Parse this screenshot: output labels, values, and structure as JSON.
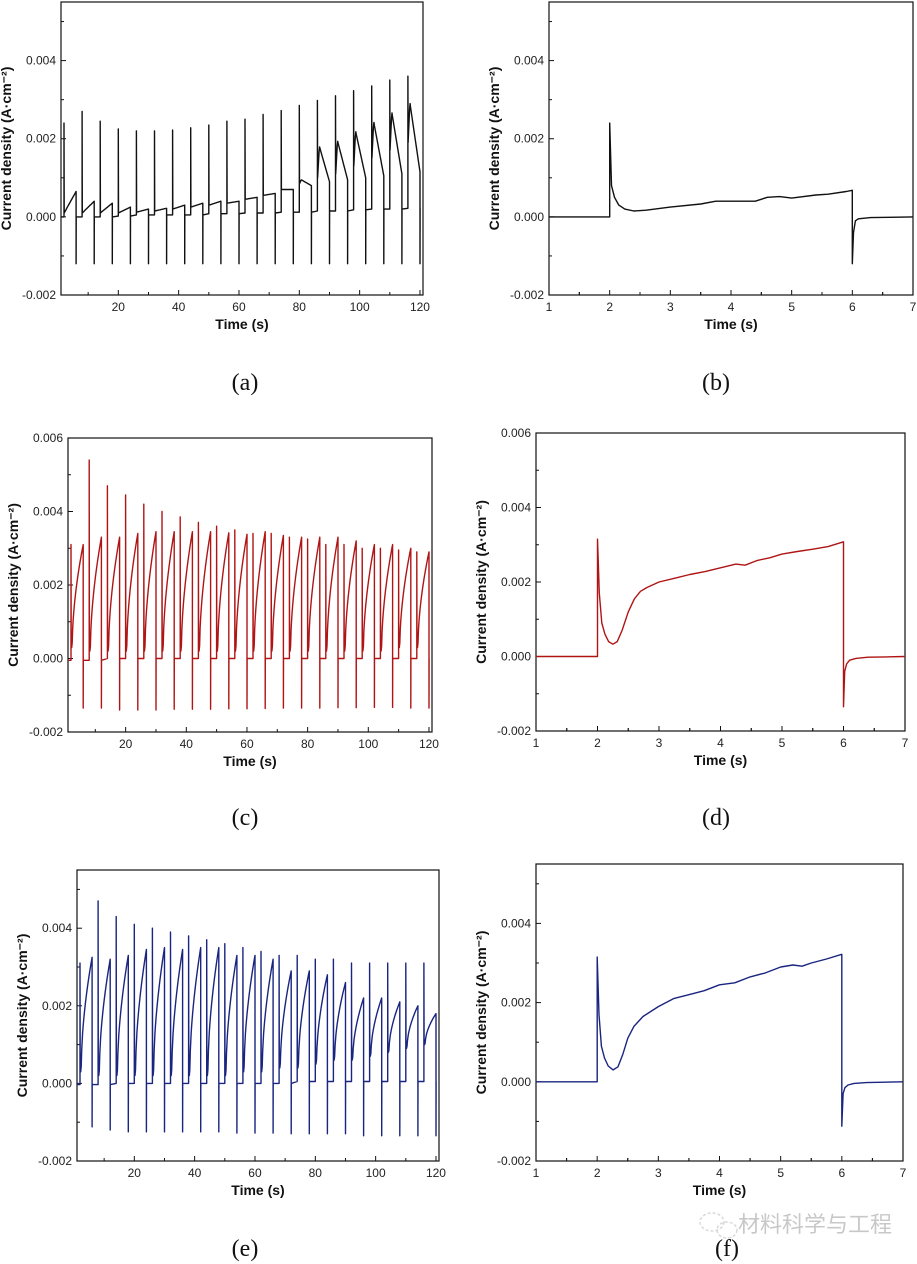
{
  "figure": {
    "watermark": "材料科学与工程",
    "watermark_icon": "wechat-logo-icon"
  },
  "chart_data": [
    {
      "id": "a",
      "panel_label": "(a)",
      "type": "line",
      "color": "#111111",
      "xlabel": "Time (s)",
      "ylabel": "Current density (A·cm⁻²)",
      "xlim": [
        1,
        121
      ],
      "ylim": [
        -0.002,
        0.0055
      ],
      "xticks": [
        20,
        40,
        60,
        80,
        100,
        120
      ],
      "yticks": [
        -0.002,
        0.0,
        0.002,
        0.004
      ],
      "ytick_labels": [
        "-0.002",
        "0.000",
        "0.002",
        "0.004"
      ],
      "pulse_mode": "cycles",
      "period_s": 6,
      "on_start_s": 2,
      "on_duration_s": 4,
      "anodic_spike_peaks": [
        0.0024,
        0.0027,
        0.00245,
        0.00225,
        0.0022,
        0.0022,
        0.00222,
        0.00228,
        0.00235,
        0.00245,
        0.0025,
        0.00262,
        0.00272,
        0.00285,
        0.00298,
        0.0031,
        0.00323,
        0.00335,
        0.0035,
        0.0036
      ],
      "pulse_start_values": [
        0.0001,
        0.0001,
        0.0001,
        0.0001,
        0.00012,
        0.00015,
        0.0002,
        0.00025,
        0.0003,
        0.00035,
        0.00045,
        0.00055,
        0.0007,
        0.00085,
        0.001,
        0.0011,
        0.0013,
        0.0015,
        0.0017,
        0.0019
      ],
      "pulse_end_values": [
        0.00065,
        0.0004,
        0.00035,
        0.00025,
        0.0002,
        0.00022,
        0.0003,
        0.00035,
        0.0004,
        0.0004,
        0.0005,
        0.0006,
        0.0007,
        0.0008,
        0.0009,
        0.00095,
        0.001,
        0.00105,
        0.0011,
        0.00115
      ],
      "pulse_shape": "decay",
      "off_baseline_values": [
        0.0,
        0.0,
        0.0,
        2e-05,
        5e-05,
        5e-05,
        5e-05,
        5e-05,
        8e-05,
        8e-05,
        0.0001,
        0.0001,
        0.00012,
        0.00012,
        0.00015,
        0.00015,
        0.00018,
        0.0002,
        0.0002,
        0.00022
      ],
      "cathodic_spike_values": [
        -0.0012,
        -0.0012,
        -0.0012,
        -0.0012,
        -0.0012,
        -0.0012,
        -0.0012,
        -0.0012,
        -0.0012,
        -0.0012,
        -0.0012,
        -0.0012,
        -0.0012,
        -0.0012,
        -0.0012,
        -0.0012,
        -0.0012,
        -0.0012,
        -0.0012,
        -0.0012
      ]
    },
    {
      "id": "b",
      "panel_label": "(b)",
      "type": "line",
      "color": "#111111",
      "xlabel": "Time (s)",
      "ylabel": "Current density (A·cm⁻²)",
      "xlim": [
        1,
        7
      ],
      "ylim": [
        -0.002,
        0.0055
      ],
      "xticks": [
        1,
        2,
        3,
        4,
        5,
        6,
        7
      ],
      "yticks": [
        -0.002,
        0.0,
        0.002,
        0.004
      ],
      "ytick_labels": [
        "-0.002",
        "0.000",
        "0.002",
        "0.004"
      ],
      "pulse_mode": "single",
      "x": [
        1,
        2,
        2,
        2.03,
        2.08,
        2.15,
        2.25,
        2.4,
        2.6,
        3.0,
        3.5,
        3.75,
        4.0,
        4.4,
        4.6,
        4.8,
        5.0,
        5.4,
        5.6,
        5.9,
        6.0,
        6.0,
        6.02,
        6.05,
        6.1,
        6.3,
        6.6,
        7.0
      ],
      "y": [
        0.0,
        0.0,
        0.0024,
        0.0008,
        0.0005,
        0.0003,
        0.0002,
        0.00015,
        0.00017,
        0.00025,
        0.00033,
        0.0004,
        0.0004,
        0.0004,
        0.0005,
        0.00052,
        0.00048,
        0.00056,
        0.00058,
        0.00065,
        0.00068,
        -0.0012,
        -0.0004,
        -0.0001,
        -5e-05,
        -2e-05,
        -1e-05,
        0.0
      ]
    },
    {
      "id": "c",
      "panel_label": "(c)",
      "type": "line",
      "color": "#b01515",
      "xlabel": "Time (s)",
      "ylabel": "Current density (A·cm⁻²)",
      "xlim": [
        1,
        121
      ],
      "ylim": [
        -0.002,
        0.006
      ],
      "xticks": [
        20,
        40,
        60,
        80,
        100,
        120
      ],
      "yticks": [
        -0.002,
        0.0,
        0.002,
        0.004,
        0.006
      ],
      "ytick_labels": [
        "-0.002",
        "0.000",
        "0.002",
        "0.004",
        "0.006"
      ],
      "pulse_mode": "cycles",
      "period_s": 6,
      "on_start_s": 2,
      "on_duration_s": 4,
      "anodic_spike_peaks": [
        0.0031,
        0.0054,
        0.0047,
        0.00445,
        0.0042,
        0.004,
        0.00385,
        0.0037,
        0.0036,
        0.0035,
        0.0034,
        0.0034,
        0.0033,
        0.00325,
        0.0031,
        0.0031,
        0.003,
        0.003,
        0.00295,
        0.0029
      ],
      "pulse_start_values": [
        0.0003,
        0.0002,
        0.0002,
        0.0002,
        0.0002,
        0.0002,
        0.0002,
        0.0002,
        0.0002,
        0.0002,
        0.0002,
        0.0002,
        0.0002,
        0.0002,
        0.0002,
        0.0002,
        0.0002,
        0.0002,
        0.0003,
        0.0003
      ],
      "pulse_end_values": [
        0.0031,
        0.0033,
        0.0033,
        0.0034,
        0.00345,
        0.00345,
        0.00345,
        0.00345,
        0.00342,
        0.00338,
        0.00345,
        0.00335,
        0.0033,
        0.0033,
        0.0033,
        0.0032,
        0.0031,
        0.0031,
        0.003,
        0.0029
      ],
      "pulse_shape": "rise",
      "off_baseline_values": [
        -5e-05,
        -5e-05,
        0.0,
        0.0,
        0.0,
        0.0,
        0.0,
        0.0,
        0.0,
        0.0,
        0.0,
        0.0,
        0.0,
        0.0,
        0.0,
        0.0,
        0.0,
        0.0,
        0.0,
        0.0
      ],
      "cathodic_spike_values": [
        -0.00135,
        -0.00135,
        -0.0014,
        -0.0014,
        -0.0014,
        -0.00138,
        -0.00138,
        -0.00138,
        -0.00137,
        -0.00137,
        -0.00136,
        -0.00135,
        -0.00135,
        -0.00135,
        -0.00134,
        -0.00134,
        -0.00133,
        -0.00133,
        -0.00135,
        -0.00135
      ]
    },
    {
      "id": "d",
      "panel_label": "(d)",
      "type": "line",
      "color": "#b01515",
      "xlabel": "Time (s)",
      "ylabel": "Current density (A·cm⁻²)",
      "xlim": [
        1,
        7
      ],
      "ylim": [
        -0.002,
        0.006
      ],
      "xticks": [
        1,
        2,
        3,
        4,
        5,
        6,
        7
      ],
      "yticks": [
        -0.002,
        0.0,
        0.002,
        0.004,
        0.006
      ],
      "ytick_labels": [
        "-0.002",
        "0.000",
        "0.002",
        "0.004",
        "0.006"
      ],
      "pulse_mode": "single",
      "x": [
        1,
        2,
        2,
        2.03,
        2.07,
        2.12,
        2.18,
        2.25,
        2.32,
        2.4,
        2.5,
        2.6,
        2.7,
        2.8,
        3.0,
        3.25,
        3.5,
        3.75,
        4.0,
        4.25,
        4.4,
        4.6,
        4.8,
        5.0,
        5.25,
        5.5,
        5.75,
        6.0,
        6.0,
        6.02,
        6.05,
        6.1,
        6.2,
        6.4,
        6.7,
        7.0
      ],
      "y": [
        0.0,
        0.0,
        0.00315,
        0.0017,
        0.0009,
        0.0006,
        0.0004,
        0.00033,
        0.0004,
        0.0007,
        0.0012,
        0.00155,
        0.00175,
        0.00185,
        0.002,
        0.0021,
        0.0022,
        0.00228,
        0.00238,
        0.00248,
        0.00245,
        0.00258,
        0.00265,
        0.00275,
        0.00282,
        0.00288,
        0.00295,
        0.00308,
        -0.00135,
        -0.0004,
        -0.0002,
        -0.0001,
        -5e-05,
        -2e-05,
        -1e-05,
        0.0
      ]
    },
    {
      "id": "e",
      "panel_label": "(e)",
      "type": "line",
      "color": "#1a2580",
      "xlabel": "Time (s)",
      "ylabel": "Current density (A·cm⁻²)",
      "xlim": [
        1,
        121
      ],
      "ylim": [
        -0.002,
        0.0055
      ],
      "xticks": [
        20,
        40,
        60,
        80,
        100,
        120
      ],
      "yticks": [
        -0.002,
        0.0,
        0.002,
        0.004
      ],
      "ytick_labels": [
        "-0.002",
        "0.000",
        "0.002",
        "0.004"
      ],
      "pulse_mode": "cycles",
      "period_s": 6,
      "on_start_s": 2,
      "on_duration_s": 4,
      "anodic_spike_peaks": [
        0.0031,
        0.0047,
        0.0043,
        0.0041,
        0.004,
        0.0039,
        0.0038,
        0.0037,
        0.0036,
        0.0035,
        0.0034,
        0.0033,
        0.0033,
        0.0032,
        0.0032,
        0.0031,
        0.0031,
        0.0031,
        0.0031,
        0.0031
      ],
      "pulse_start_values": [
        0.0003,
        0.0002,
        0.0002,
        0.0002,
        0.0002,
        0.0002,
        0.0002,
        0.0002,
        0.0002,
        0.0003,
        0.0003,
        0.0004,
        0.0004,
        0.0005,
        0.0006,
        0.0006,
        0.0007,
        0.0008,
        0.0009,
        0.001
      ],
      "pulse_end_values": [
        0.00325,
        0.0032,
        0.0033,
        0.00345,
        0.0035,
        0.00345,
        0.0035,
        0.0035,
        0.0033,
        0.0033,
        0.0032,
        0.0029,
        0.0029,
        0.0028,
        0.0026,
        0.0022,
        0.0022,
        0.0021,
        0.002,
        0.0018
      ],
      "pulse_shape": "rise",
      "off_baseline_values": [
        -3e-05,
        -3e-05,
        0.0,
        0.0,
        0.0,
        0.0,
        0.0,
        0.0,
        0.0,
        0.0,
        0.0,
        0.0,
        5e-05,
        5e-05,
        5e-05,
        5e-05,
        5e-05,
        5e-05,
        5e-05,
        5e-05
      ],
      "cathodic_spike_values": [
        -0.00112,
        -0.0012,
        -0.00125,
        -0.00125,
        -0.00125,
        -0.00125,
        -0.00125,
        -0.00125,
        -0.00128,
        -0.00128,
        -0.00128,
        -0.0013,
        -0.0013,
        -0.0013,
        -0.0013,
        -0.00135,
        -0.00135,
        -0.00135,
        -0.00135,
        -0.00135
      ]
    },
    {
      "id": "f",
      "panel_label": "(f)",
      "type": "line",
      "color": "#1a2580",
      "xlabel": "Time (s)",
      "ylabel": "Current density (A·cm⁻²)",
      "xlim": [
        1,
        7
      ],
      "ylim": [
        -0.002,
        0.0055
      ],
      "xticks": [
        1,
        2,
        3,
        4,
        5,
        6,
        7
      ],
      "yticks": [
        -0.002,
        0.0,
        0.002,
        0.004
      ],
      "ytick_labels": [
        "-0.002",
        "0.000",
        "0.002",
        "0.004"
      ],
      "pulse_mode": "single",
      "x": [
        1,
        2,
        2,
        2.03,
        2.07,
        2.12,
        2.18,
        2.26,
        2.34,
        2.42,
        2.5,
        2.6,
        2.75,
        3.0,
        3.25,
        3.5,
        3.75,
        4.0,
        4.25,
        4.5,
        4.75,
        5.0,
        5.2,
        5.35,
        5.5,
        5.75,
        6.0,
        6.0,
        6.02,
        6.05,
        6.1,
        6.2,
        6.4,
        6.7,
        7.0
      ],
      "y": [
        0.0,
        0.0,
        0.00315,
        0.0017,
        0.0009,
        0.0006,
        0.0004,
        0.0003,
        0.00038,
        0.0007,
        0.0011,
        0.0014,
        0.00165,
        0.0019,
        0.0021,
        0.0022,
        0.0023,
        0.00245,
        0.0025,
        0.00265,
        0.00275,
        0.0029,
        0.00295,
        0.00292,
        0.003,
        0.0031,
        0.00322,
        -0.00112,
        -0.0003,
        -0.00015,
        -8e-05,
        -4e-05,
        -2e-05,
        -1e-05,
        0.0
      ]
    }
  ]
}
